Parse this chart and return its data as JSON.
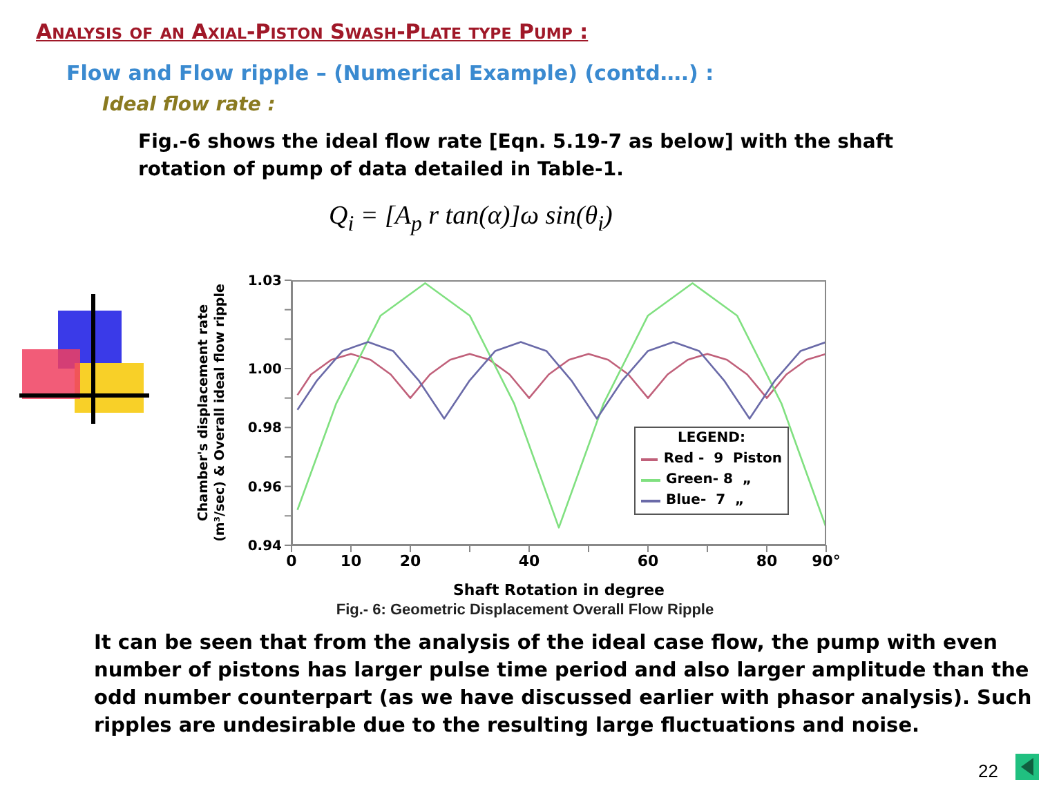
{
  "chart_data": {
    "type": "line",
    "title": "Analysis of an Axial-Piston Swash-Plate type Pump :",
    "subtitle": "Flow and Flow ripple – (Numerical Example) (contd….) :",
    "annotations": [
      "Ideal flow rate :",
      "Fig.-6 shows the ideal flow rate [Eqn. 5.19-7 as below] with the shaft rotation of pump of data detailed in Table-1.",
      "Q$_{i}$ = [A$_{p}$ r  tan(α)]ω sin(θ$_{i}$)",
      "Fig.- 6: Geometric Displacement Overall Flow Ripple",
      "It can be seen that from the analysis of the ideal case flow, the pump with even number of pistons has larger pulse time period and also larger amplitude than the odd number counterpart (as we have discussed earlier with phasor analysis). Such ripples are undesirable due to the resulting large fluctuations and noise.",
      "22"
    ],
    "xlabel": "Shaft Rotation in degree",
    "ylabel": "Chamber's displacement rate (m³/sec) & Overall ideal flow ripple",
    "legend_title": "LEGEND:",
    "xlim": [
      0,
      90
    ],
    "xticks": [
      0,
      10,
      20,
      {
        "value": 30,
        "label": null
      },
      40,
      {
        "value": 50,
        "label": null
      },
      60,
      {
        "value": 70,
        "label": null
      },
      80,
      {
        "value": 90,
        "label": "90°"
      }
    ],
    "ylim": [
      0.94,
      1.03
    ],
    "yticks": [
      0.94,
      {
        "value": 0.95,
        "label": null
      },
      0.96,
      {
        "value": 0.97,
        "label": null
      },
      0.98,
      {
        "value": 0.99,
        "label": null
      },
      {
        "value": 1,
        "label": "1.00"
      },
      {
        "value": 1.01,
        "label": null
      },
      {
        "value": 1.02,
        "label": null
      },
      1.03
    ],
    "grid": false,
    "legend": "bottom right",
    "marker": "none",
    "line_style": "solid",
    "series": [
      {
        "name": "Red -  9  Piston",
        "color": "#c0607a",
        "x": [
          1,
          3.3,
          6.7,
          10,
          13.3,
          16.7,
          20,
          23.3,
          26.7,
          30,
          33.3,
          36.7,
          40,
          43.3,
          46.7,
          50,
          53.3,
          56.7,
          60,
          63.3,
          66.7,
          70,
          73.3,
          76.7,
          80,
          83.3,
          86.7,
          90
        ],
        "values": [
          0.991,
          0.998,
          1.003,
          1.005,
          1.003,
          0.998,
          0.99,
          0.998,
          1.003,
          1.005,
          1.003,
          0.998,
          0.99,
          0.998,
          1.003,
          1.005,
          1.003,
          0.998,
          0.99,
          0.998,
          1.003,
          1.005,
          1.003,
          0.998,
          0.99,
          0.998,
          1.003,
          1.005
        ]
      },
      {
        "name": "Green- 8  „",
        "color": "#80e080",
        "x": [
          1,
          7.5,
          15,
          22.5,
          30,
          37.5,
          45,
          52.5,
          60,
          67.5,
          75,
          82.5,
          90
        ],
        "values": [
          0.952,
          0.988,
          1.018,
          1.029,
          1.018,
          0.988,
          0.946,
          0.988,
          1.018,
          1.029,
          1.018,
          0.988,
          0.946
        ]
      },
      {
        "name": "Blue-  7  „",
        "color": "#6a6aa8",
        "x": [
          1,
          4.3,
          8.6,
          12.9,
          17.1,
          21.4,
          25.7,
          30,
          34.3,
          38.6,
          42.9,
          47.1,
          51.4,
          55.7,
          60,
          64.3,
          68.6,
          72.8,
          77.1,
          81.4,
          85.7,
          90
        ],
        "values": [
          0.986,
          0.996,
          1.006,
          1.009,
          1.006,
          0.996,
          0.983,
          0.996,
          1.006,
          1.009,
          1.006,
          0.996,
          0.983,
          0.996,
          1.006,
          1.009,
          1.006,
          0.996,
          0.983,
          0.996,
          1.006,
          1.009
        ]
      }
    ]
  }
}
